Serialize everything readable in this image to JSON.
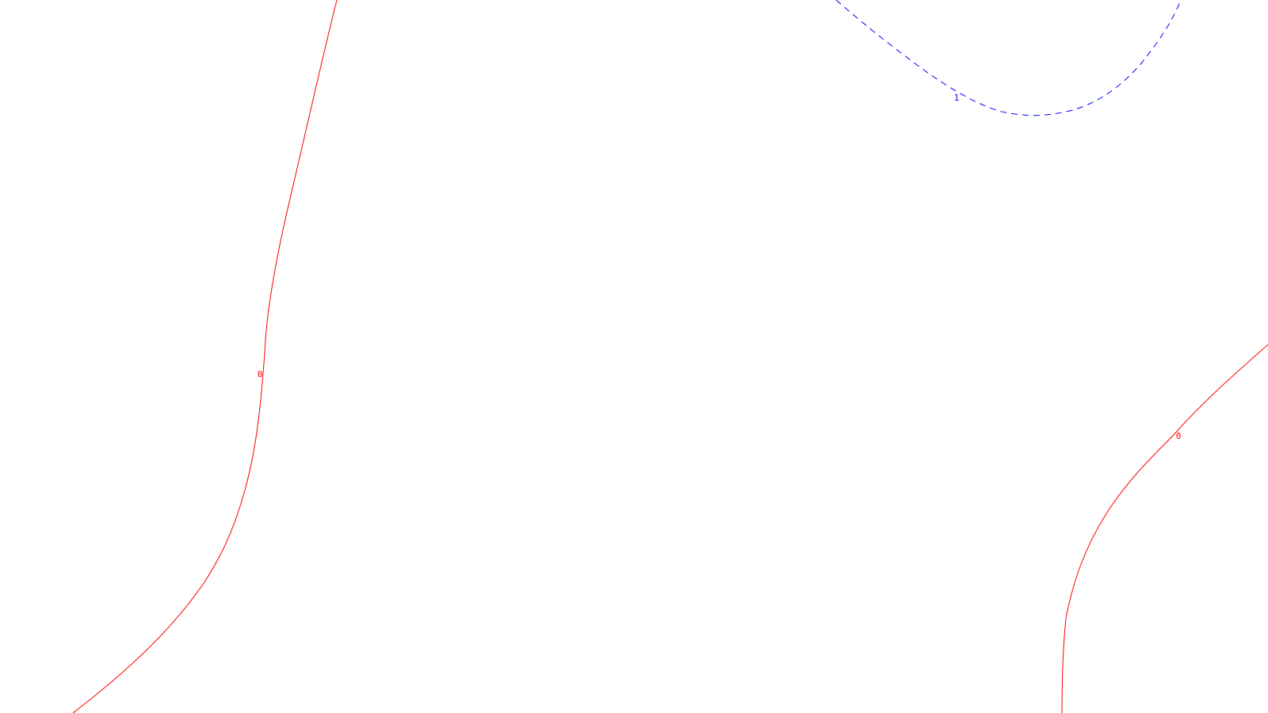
{
  "background": "#ffffff",
  "contours": [
    {
      "id": "left",
      "level_label": "0",
      "color": "#ff0000",
      "style": "solid"
    },
    {
      "id": "bottom-right",
      "level_label": "0",
      "color": "#ff0000",
      "style": "solid"
    },
    {
      "id": "top-right",
      "level_label": "1",
      "color": "#0000ff",
      "style": "dashed"
    }
  ]
}
